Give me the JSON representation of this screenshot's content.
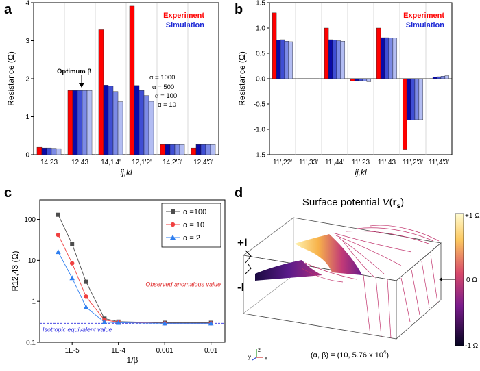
{
  "panels": {
    "a": "a",
    "b": "b",
    "c": "c",
    "d": "d"
  },
  "colors": {
    "experiment": "#ff0000",
    "simulation": "#1f2bd6",
    "sim_shades": [
      "#0a0aa8",
      "#3f4ed4",
      "#7c8ae6",
      "#b3bdf3"
    ]
  },
  "chart_data": [
    {
      "type": "bar",
      "title": "",
      "xlabel": "ij,kl",
      "ylabel": "Resistance (Ω)",
      "ylim": [
        0,
        4.5
      ],
      "yticks": [
        "0",
        "1",
        "2",
        "3",
        "4"
      ],
      "categories": [
        "14,23",
        "12,43",
        "14,1'4'",
        "12,1'2'",
        "14,2'3'",
        "12,4'3'"
      ],
      "series": [
        {
          "name": "Experiment",
          "values": [
            0.22,
            1.9,
            3.7,
            4.4,
            0.3,
            0.2
          ]
        },
        {
          "name": "Simulation α = 1000",
          "values": [
            0.2,
            1.9,
            2.06,
            2.05,
            0.3,
            0.3
          ]
        },
        {
          "name": "Simulation α = 500",
          "values": [
            0.2,
            1.9,
            2.03,
            1.9,
            0.3,
            0.3
          ]
        },
        {
          "name": "Simulation α = 100",
          "values": [
            0.19,
            1.9,
            1.87,
            1.75,
            0.3,
            0.3
          ]
        },
        {
          "name": "Simulation α = 10",
          "values": [
            0.18,
            1.9,
            1.57,
            1.58,
            0.3,
            0.3
          ]
        }
      ],
      "legend": [
        "Experiment",
        "Simulation"
      ],
      "annotations": {
        "optimum": "Optimum β",
        "alpha_labels": [
          "α = 1000",
          "α = 500",
          "α = 100",
          "α = 10"
        ]
      }
    },
    {
      "type": "bar",
      "xlabel": "ij,kl",
      "ylabel": "Resistance (Ω)",
      "ylim": [
        -1.5,
        1.5
      ],
      "yticks": [
        "-1.5",
        "-1.0",
        "-0.5",
        "0.0",
        "0.5",
        "1.0",
        "1.5"
      ],
      "categories": [
        "11',22'",
        "11',33'",
        "11',44'",
        "11',23",
        "11',43",
        "11',2'3'",
        "11',4'3'"
      ],
      "series": [
        {
          "name": "Experiment",
          "values": [
            1.3,
            0.0,
            1.0,
            -0.05,
            1.0,
            -1.4,
            0.0
          ]
        },
        {
          "name": "Simulation α = 1000",
          "values": [
            0.76,
            -0.01,
            0.77,
            -0.04,
            0.81,
            -0.82,
            0.03
          ]
        },
        {
          "name": "Simulation α = 500",
          "values": [
            0.77,
            -0.01,
            0.76,
            -0.04,
            0.81,
            -0.82,
            0.04
          ]
        },
        {
          "name": "Simulation α = 100",
          "values": [
            0.74,
            -0.01,
            0.75,
            -0.05,
            0.8,
            -0.81,
            0.05
          ]
        },
        {
          "name": "Simulation α = 10",
          "values": [
            0.73,
            -0.01,
            0.74,
            -0.06,
            0.8,
            -0.81,
            0.06
          ]
        }
      ],
      "legend": [
        "Experiment",
        "Simulation"
      ]
    },
    {
      "type": "line",
      "xlabel": "1/β",
      "ylabel": "R12,43 (Ω)",
      "xscale": "log",
      "yscale": "log",
      "xlim": [
        2e-06,
        0.02
      ],
      "ylim": [
        0.1,
        300
      ],
      "xticks": [
        "1E-5",
        "1E-4",
        "0.001",
        "0.01"
      ],
      "yticks": [
        "0.1",
        "1",
        "10",
        "100"
      ],
      "x": [
        5e-06,
        1e-05,
        2e-05,
        5e-05,
        0.0001,
        0.001,
        0.01
      ],
      "series": [
        {
          "name": "α =100",
          "color": "#4d4d4d",
          "marker": "square",
          "values": [
            130,
            25,
            3.0,
            0.38,
            0.32,
            0.3,
            0.3
          ]
        },
        {
          "name": "α = 10",
          "color": "#f04040",
          "marker": "circle",
          "values": [
            42,
            8.5,
            1.3,
            0.35,
            0.31,
            0.29,
            0.29
          ]
        },
        {
          "name": "α = 2",
          "color": "#2f7ff0",
          "marker": "triangle",
          "values": [
            16,
            3.7,
            0.72,
            0.31,
            0.3,
            0.29,
            0.29
          ]
        }
      ],
      "reference_lines": [
        {
          "label": "Observed anomalous value",
          "value": 1.9,
          "color": "#e03030"
        },
        {
          "label": "Isotropic equivalent value",
          "value": 0.29,
          "color": "#3030e0"
        }
      ]
    }
  ],
  "panel_d": {
    "title": "Surface potential ",
    "title_var": "V",
    "title_arg": "r",
    "title_sub": "s",
    "plus_label": "+I",
    "minus_label": "-I",
    "colorbar": [
      "+1 Ω",
      "0 Ω",
      "-1 Ω"
    ],
    "params": "(α, β) = (10, 5.76 x 10",
    "params_exp": "4",
    "params_close": ")",
    "axes": {
      "x": "x",
      "y": "y",
      "z": "z"
    }
  }
}
